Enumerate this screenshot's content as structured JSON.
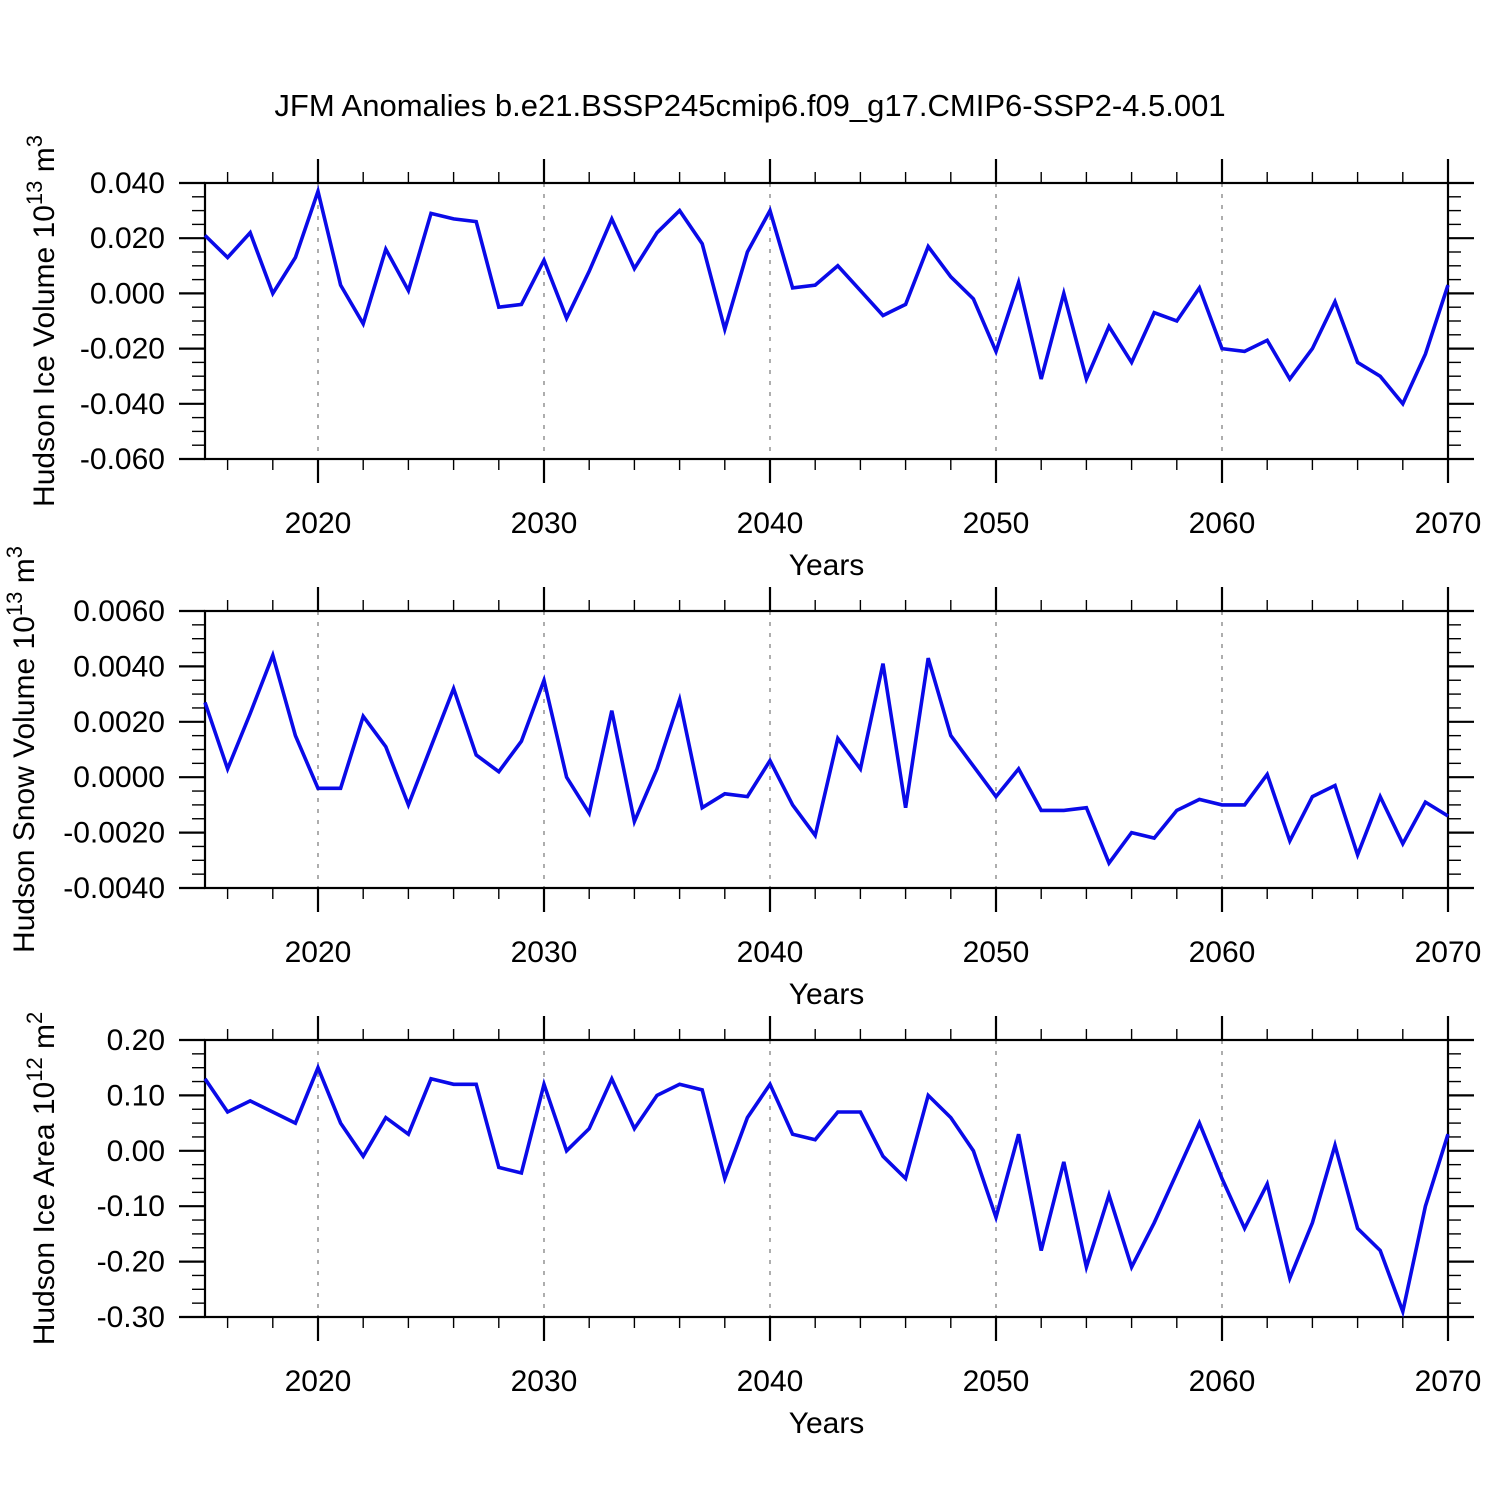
{
  "title": "JFM Anomalies b.e21.BSSP245cmip6.f09_g17.CMIP6-SSP2-4.5.001",
  "colors": {
    "line": "#0a0ae8",
    "grid": "#999999",
    "frame": "#000000"
  },
  "chart_data": {
    "type": "line",
    "x_label": "Years",
    "x": [
      2015,
      2016,
      2017,
      2018,
      2019,
      2020,
      2021,
      2022,
      2023,
      2024,
      2025,
      2026,
      2027,
      2028,
      2029,
      2030,
      2031,
      2032,
      2033,
      2034,
      2035,
      2036,
      2037,
      2038,
      2039,
      2040,
      2041,
      2042,
      2043,
      2044,
      2045,
      2046,
      2047,
      2048,
      2049,
      2050,
      2051,
      2052,
      2053,
      2054,
      2055,
      2056,
      2057,
      2058,
      2059,
      2060,
      2061,
      2062,
      2063,
      2064,
      2065,
      2066,
      2067,
      2068,
      2069,
      2070
    ],
    "xlim": [
      2015,
      2070
    ],
    "x_ticks_major": [
      2020,
      2030,
      2040,
      2050,
      2060,
      2070
    ],
    "x_tick_labels": [
      "2020",
      "2030",
      "2040",
      "2050",
      "2060",
      "2070"
    ],
    "x_minor_step": 2,
    "grid": "vertical dashed gridlines at 2020,2030,2040,2050,2060",
    "legend": "none",
    "panels": [
      {
        "name": "ice-volume",
        "ylabel_plain": "Hudson Ice Volume 10^13 m^3",
        "ylabel_segments": [
          {
            "text": "Hudson Ice Volume 10"
          },
          {
            "text": "13",
            "sup": true
          },
          {
            "text": " m"
          },
          {
            "text": "3",
            "sup": true
          }
        ],
        "ylim": [
          -0.06,
          0.04
        ],
        "ytick_major": 0.02,
        "ytick_minor": 0.005,
        "ytick_labels": [
          "0.040",
          "0.020",
          "0.000",
          "-0.020",
          "-0.040",
          "-0.060"
        ],
        "values": [
          0.021,
          0.013,
          0.022,
          0.0,
          0.013,
          0.037,
          0.003,
          -0.011,
          0.016,
          0.001,
          0.029,
          0.027,
          0.026,
          -0.005,
          -0.004,
          0.012,
          -0.009,
          0.008,
          0.027,
          0.009,
          0.022,
          0.03,
          0.018,
          -0.013,
          0.015,
          0.03,
          0.002,
          0.003,
          0.01,
          0.001,
          -0.008,
          -0.004,
          0.017,
          0.006,
          -0.002,
          -0.021,
          0.004,
          -0.031,
          0.0,
          -0.031,
          -0.012,
          -0.025,
          -0.007,
          -0.01,
          0.002,
          -0.02,
          -0.021,
          -0.017,
          -0.031,
          -0.02,
          -0.003,
          -0.025,
          -0.03,
          -0.04,
          -0.022,
          0.003
        ]
      },
      {
        "name": "snow-volume",
        "ylabel_plain": "Hudson Snow Volume 10^13 m^3",
        "ylabel_segments": [
          {
            "text": "Hudson Snow Volume 10"
          },
          {
            "text": "13",
            "sup": true
          },
          {
            "text": " m"
          },
          {
            "text": "3",
            "sup": true
          }
        ],
        "ylim": [
          -0.004,
          0.006
        ],
        "ytick_major": 0.002,
        "ytick_minor": 0.0005,
        "ytick_labels": [
          "0.0060",
          "0.0040",
          "0.0020",
          "0.0000",
          "-0.0020",
          "-0.0040"
        ],
        "values": [
          0.0027,
          0.0003,
          0.0023,
          0.0044,
          0.0015,
          -0.0004,
          -0.0004,
          0.0022,
          0.0011,
          -0.001,
          0.0011,
          0.0032,
          0.0008,
          0.0002,
          0.0013,
          0.0035,
          0.0,
          -0.0013,
          0.0024,
          -0.0016,
          0.0003,
          0.0028,
          -0.0011,
          -0.0006,
          -0.0007,
          0.0006,
          -0.001,
          -0.0021,
          0.0014,
          0.0003,
          0.0041,
          -0.0011,
          0.0043,
          0.0015,
          0.0004,
          -0.0007,
          0.0003,
          -0.0012,
          -0.0012,
          -0.0011,
          -0.0031,
          -0.002,
          -0.0022,
          -0.0012,
          -0.0008,
          -0.001,
          -0.001,
          0.0001,
          -0.0023,
          -0.0007,
          -0.0003,
          -0.0028,
          -0.0007,
          -0.0024,
          -0.0009,
          -0.0014
        ]
      },
      {
        "name": "ice-area",
        "ylabel_plain": "Hudson Ice Area 10^12 m^2",
        "ylabel_segments": [
          {
            "text": "Hudson Ice Area 10"
          },
          {
            "text": "12",
            "sup": true
          },
          {
            "text": " m"
          },
          {
            "text": "2",
            "sup": true
          }
        ],
        "ylim": [
          -0.3,
          0.2
        ],
        "ytick_major": 0.1,
        "ytick_minor": 0.025,
        "ytick_labels": [
          "0.20",
          "0.10",
          "0.00",
          "-0.10",
          "-0.20",
          "-0.30"
        ],
        "values": [
          0.13,
          0.07,
          0.09,
          0.07,
          0.05,
          0.15,
          0.05,
          -0.01,
          0.06,
          0.03,
          0.13,
          0.12,
          0.12,
          -0.03,
          -0.04,
          0.12,
          0.0,
          0.04,
          0.13,
          0.04,
          0.1,
          0.12,
          0.11,
          -0.05,
          0.06,
          0.12,
          0.03,
          0.02,
          0.07,
          0.07,
          -0.01,
          -0.05,
          0.1,
          0.06,
          0.0,
          -0.12,
          0.03,
          -0.18,
          -0.02,
          -0.21,
          -0.08,
          -0.21,
          -0.13,
          -0.04,
          0.05,
          -0.05,
          -0.14,
          -0.06,
          -0.23,
          -0.13,
          0.01,
          -0.14,
          -0.18,
          -0.29,
          -0.1,
          0.03
        ]
      }
    ]
  }
}
